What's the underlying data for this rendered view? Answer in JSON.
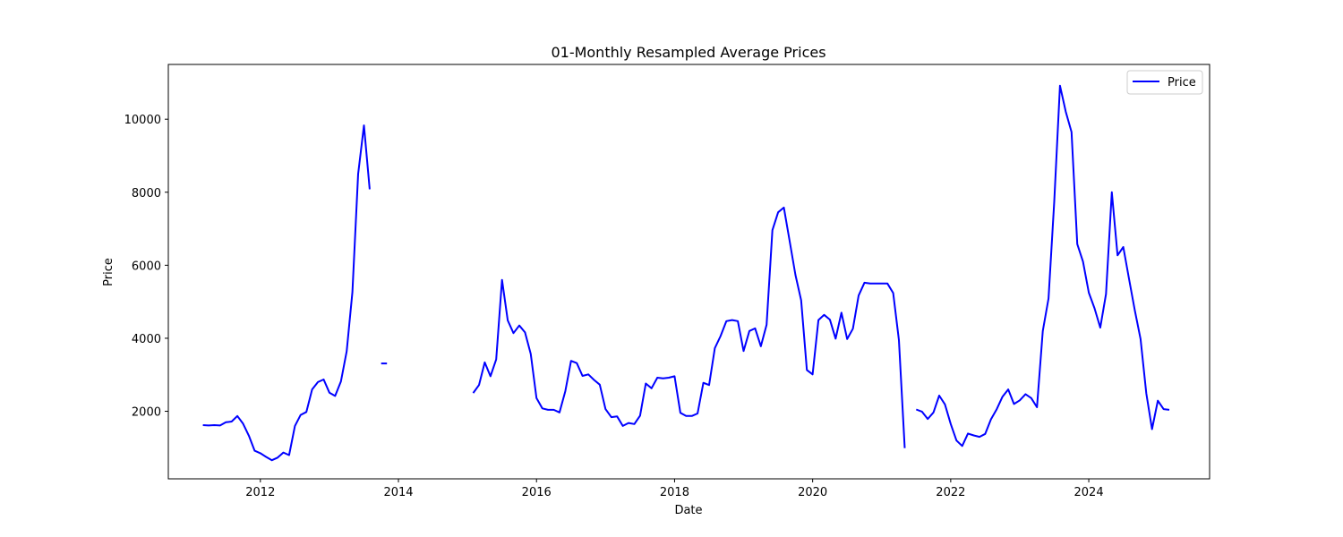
{
  "chart_data": {
    "type": "line",
    "title": "01-Monthly Resampled Average Prices",
    "xlabel": "Date",
    "ylabel": "Price",
    "xlim": [
      "2010-09-01",
      "2025-10-01"
    ],
    "ylim": [
      150,
      11500
    ],
    "x_ticks": [
      "2012",
      "2014",
      "2016",
      "2018",
      "2020",
      "2022",
      "2024"
    ],
    "y_ticks": [
      2000,
      4000,
      6000,
      8000,
      10000
    ],
    "grid": false,
    "legend_position": "top-right",
    "series": [
      {
        "name": "Price",
        "color": "#0000ff",
        "points": [
          [
            "2011-03",
            1620
          ],
          [
            "2011-04",
            1610
          ],
          [
            "2011-05",
            1620
          ],
          [
            "2011-06",
            1610
          ],
          [
            "2011-07",
            1700
          ],
          [
            "2011-08",
            1720
          ],
          [
            "2011-09",
            1870
          ],
          [
            "2011-10",
            1660
          ],
          [
            "2011-11",
            1330
          ],
          [
            "2011-12",
            920
          ],
          [
            "2012-01",
            850
          ],
          [
            "2012-02",
            750
          ],
          [
            "2012-03",
            660
          ],
          [
            "2012-04",
            730
          ],
          [
            "2012-05",
            870
          ],
          [
            "2012-06",
            800
          ],
          [
            "2012-07",
            1600
          ],
          [
            "2012-08",
            1900
          ],
          [
            "2012-09",
            1980
          ],
          [
            "2012-10",
            2600
          ],
          [
            "2012-11",
            2800
          ],
          [
            "2012-12",
            2870
          ],
          [
            "2013-01",
            2510
          ],
          [
            "2013-02",
            2420
          ],
          [
            "2013-03",
            2820
          ],
          [
            "2013-04",
            3640
          ],
          [
            "2013-05",
            5260
          ],
          [
            "2013-06",
            8500
          ],
          [
            "2013-07",
            9830
          ],
          [
            "2013-08",
            8080
          ],
          [
            "2013-09",
            null
          ],
          [
            "2013-10",
            3310
          ],
          [
            "2013-11",
            3310
          ],
          [
            "2013-12",
            null
          ],
          [
            "2015-02",
            2500
          ],
          [
            "2015-03",
            2720
          ],
          [
            "2015-04",
            3340
          ],
          [
            "2015-05",
            2960
          ],
          [
            "2015-06",
            3420
          ],
          [
            "2015-07",
            5600
          ],
          [
            "2015-08",
            4490
          ],
          [
            "2015-09",
            4140
          ],
          [
            "2015-10",
            4350
          ],
          [
            "2015-11",
            4160
          ],
          [
            "2015-12",
            3570
          ],
          [
            "2016-01",
            2360
          ],
          [
            "2016-02",
            2080
          ],
          [
            "2016-03",
            2040
          ],
          [
            "2016-04",
            2040
          ],
          [
            "2016-05",
            1970
          ],
          [
            "2016-06",
            2550
          ],
          [
            "2016-07",
            3380
          ],
          [
            "2016-08",
            3320
          ],
          [
            "2016-09",
            2970
          ],
          [
            "2016-10",
            3010
          ],
          [
            "2016-11",
            2860
          ],
          [
            "2016-12",
            2730
          ],
          [
            "2017-01",
            2060
          ],
          [
            "2017-02",
            1840
          ],
          [
            "2017-03",
            1860
          ],
          [
            "2017-04",
            1600
          ],
          [
            "2017-05",
            1680
          ],
          [
            "2017-06",
            1650
          ],
          [
            "2017-07",
            1880
          ],
          [
            "2017-08",
            2760
          ],
          [
            "2017-09",
            2630
          ],
          [
            "2017-10",
            2920
          ],
          [
            "2017-11",
            2900
          ],
          [
            "2017-12",
            2920
          ],
          [
            "2018-01",
            2960
          ],
          [
            "2018-02",
            1960
          ],
          [
            "2018-03",
            1870
          ],
          [
            "2018-04",
            1870
          ],
          [
            "2018-05",
            1940
          ],
          [
            "2018-06",
            2780
          ],
          [
            "2018-07",
            2720
          ],
          [
            "2018-08",
            3730
          ],
          [
            "2018-09",
            4060
          ],
          [
            "2018-10",
            4470
          ],
          [
            "2018-11",
            4500
          ],
          [
            "2018-12",
            4470
          ],
          [
            "2019-01",
            3650
          ],
          [
            "2019-02",
            4200
          ],
          [
            "2019-03",
            4270
          ],
          [
            "2019-04",
            3780
          ],
          [
            "2019-05",
            4370
          ],
          [
            "2019-06",
            6960
          ],
          [
            "2019-07",
            7450
          ],
          [
            "2019-08",
            7580
          ],
          [
            "2019-09",
            6670
          ],
          [
            "2019-10",
            5740
          ],
          [
            "2019-11",
            5040
          ],
          [
            "2019-12",
            3130
          ],
          [
            "2020-01",
            3010
          ],
          [
            "2020-02",
            4500
          ],
          [
            "2020-03",
            4640
          ],
          [
            "2020-04",
            4510
          ],
          [
            "2020-05",
            3990
          ],
          [
            "2020-06",
            4700
          ],
          [
            "2020-07",
            3980
          ],
          [
            "2020-08",
            4260
          ],
          [
            "2020-09",
            5170
          ],
          [
            "2020-10",
            5520
          ],
          [
            "2020-11",
            5500
          ],
          [
            "2020-12",
            5500
          ],
          [
            "2021-01",
            5500
          ],
          [
            "2021-02",
            5500
          ],
          [
            "2021-03",
            5240
          ],
          [
            "2021-04",
            3950
          ],
          [
            "2021-05",
            990
          ],
          [
            "2021-06",
            null
          ],
          [
            "2021-07",
            2050
          ],
          [
            "2021-08",
            1990
          ],
          [
            "2021-09",
            1790
          ],
          [
            "2021-10",
            1970
          ],
          [
            "2021-11",
            2430
          ],
          [
            "2021-12",
            2190
          ],
          [
            "2022-01",
            1650
          ],
          [
            "2022-02",
            1200
          ],
          [
            "2022-03",
            1050
          ],
          [
            "2022-04",
            1390
          ],
          [
            "2022-05",
            1340
          ],
          [
            "2022-06",
            1300
          ],
          [
            "2022-07",
            1380
          ],
          [
            "2022-08",
            1780
          ],
          [
            "2022-09",
            2060
          ],
          [
            "2022-10",
            2400
          ],
          [
            "2022-11",
            2600
          ],
          [
            "2022-12",
            2200
          ],
          [
            "2023-01",
            2300
          ],
          [
            "2023-02",
            2470
          ],
          [
            "2023-03",
            2360
          ],
          [
            "2023-04",
            2110
          ],
          [
            "2023-05",
            4200
          ],
          [
            "2023-06",
            5090
          ],
          [
            "2023-07",
            7750
          ],
          [
            "2023-08",
            10920
          ],
          [
            "2023-09",
            10200
          ],
          [
            "2023-10",
            9650
          ],
          [
            "2023-11",
            6580
          ],
          [
            "2023-12",
            6100
          ],
          [
            "2024-01",
            5250
          ],
          [
            "2024-02",
            4820
          ],
          [
            "2024-03",
            4290
          ],
          [
            "2024-04",
            5210
          ],
          [
            "2024-05",
            8000
          ],
          [
            "2024-06",
            6270
          ],
          [
            "2024-07",
            6500
          ],
          [
            "2024-08",
            5630
          ],
          [
            "2024-09",
            4760
          ],
          [
            "2024-10",
            3980
          ],
          [
            "2024-11",
            2490
          ],
          [
            "2024-12",
            1510
          ],
          [
            "2025-01",
            2290
          ],
          [
            "2025-02",
            2060
          ],
          [
            "2025-03",
            2040
          ]
        ]
      }
    ]
  }
}
